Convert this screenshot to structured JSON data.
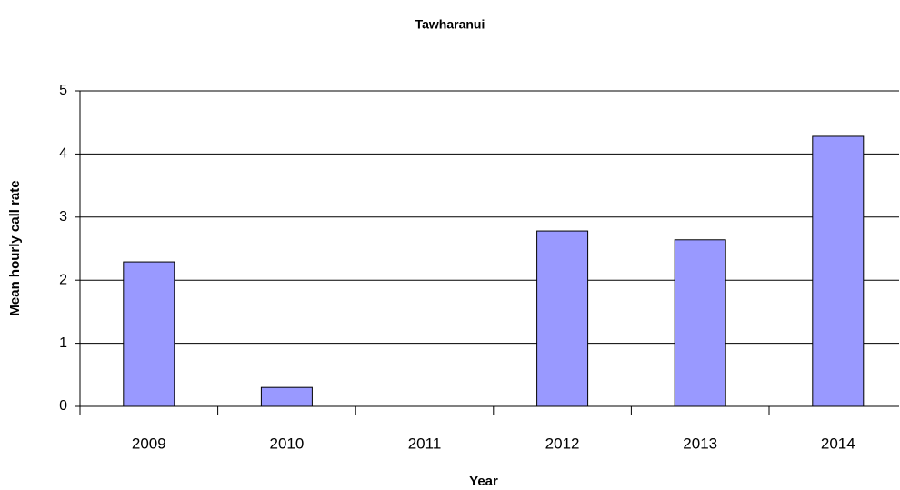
{
  "chart_data": {
    "type": "bar",
    "title": "Tawharanui",
    "x_label": "Year",
    "y_label": "Mean hourly call rate",
    "categories": [
      "2009",
      "2010",
      "2011",
      "2012",
      "2013",
      "2014"
    ],
    "values": [
      2.29,
      0.3,
      0,
      2.78,
      2.64,
      4.28
    ],
    "color": "#9999ff",
    "ylim": [
      0,
      5
    ],
    "yticks": [
      0,
      1,
      2,
      3,
      4,
      5
    ],
    "grid": true
  }
}
